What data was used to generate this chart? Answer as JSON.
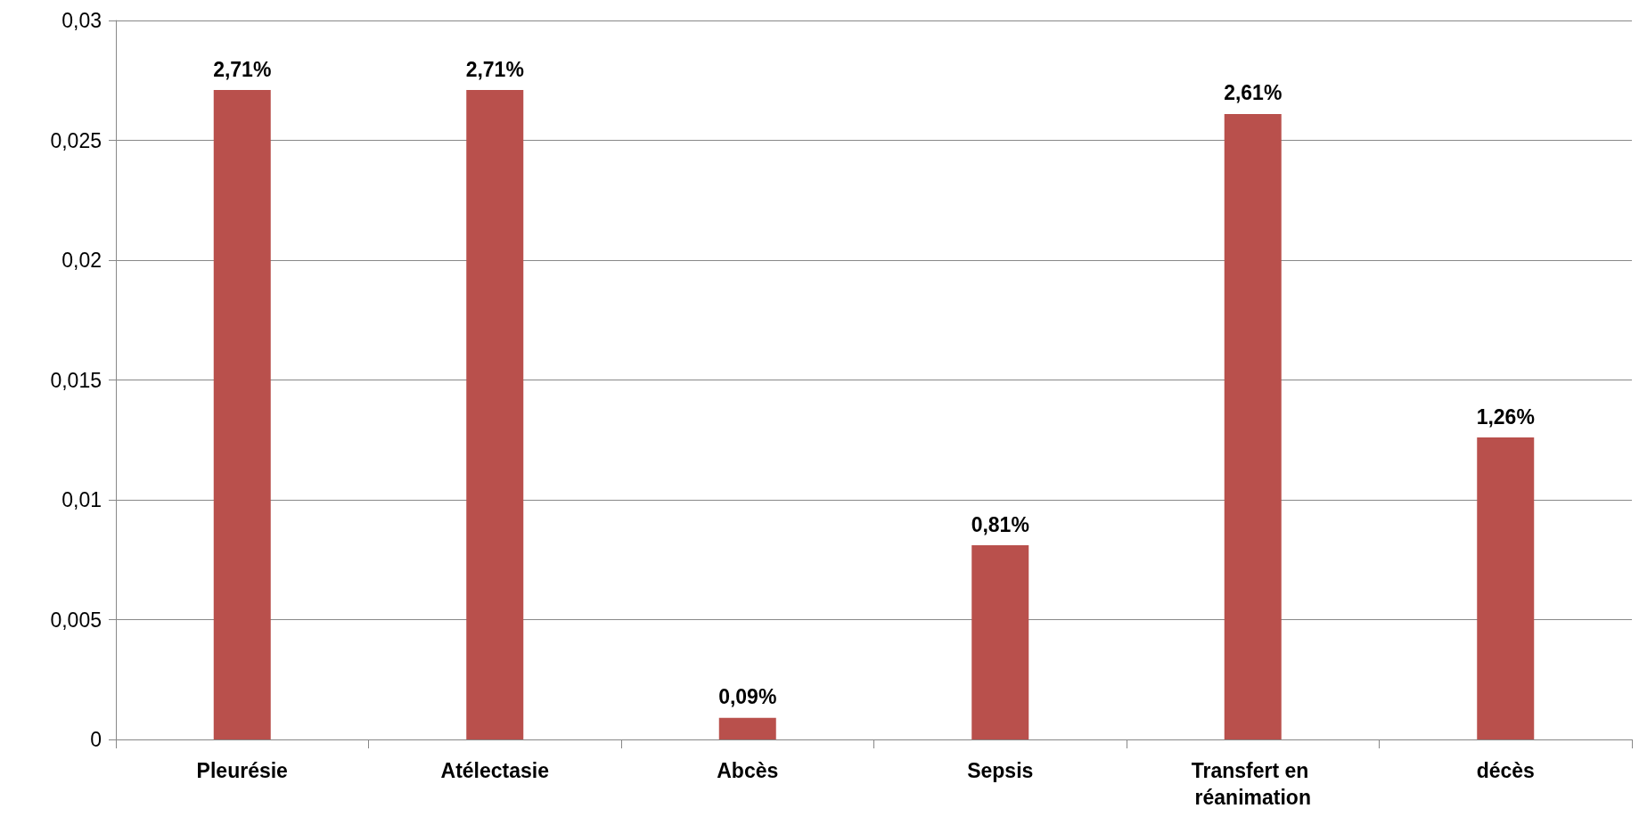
{
  "chart_data": {
    "type": "bar",
    "categories": [
      "Pleurésie",
      "Atélectasie",
      "Abcès",
      "Sepsis",
      "Transfert en réanimation",
      "décès"
    ],
    "values": [
      0.0271,
      0.0271,
      0.0009,
      0.0081,
      0.0261,
      0.0126
    ],
    "value_labels": [
      "2,71%",
      "2,71%",
      "0,09%",
      "0,81%",
      "2,61%",
      "1,26%"
    ],
    "color": "#b9504c",
    "ylim": [
      0,
      0.03
    ],
    "yticks": [
      {
        "value": 0,
        "label": "0"
      },
      {
        "value": 0.005,
        "label": "0,005"
      },
      {
        "value": 0.01,
        "label": "0,01"
      },
      {
        "value": 0.015,
        "label": "0,015"
      },
      {
        "value": 0.02,
        "label": "0,02"
      },
      {
        "value": 0.025,
        "label": "0,025"
      },
      {
        "value": 0.03,
        "label": "0,03"
      }
    ],
    "grid": "y"
  }
}
